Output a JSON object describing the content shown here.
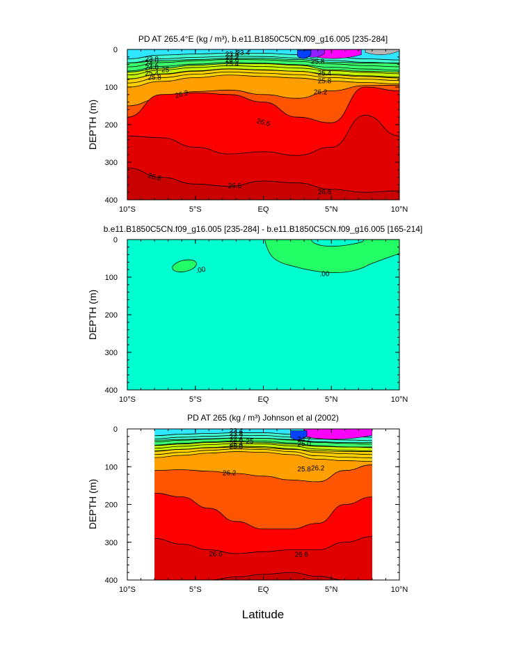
{
  "x_axis_label": "Latitude",
  "chart_data": [
    {
      "type": "heatmap",
      "title": "PD AT 265.4°E (kg / m³), b.e11.B1850C5CN.f09_g16.005 [235-284]",
      "ylabel": "DEPTH (m)",
      "xlabel": "",
      "xlim": [
        -10,
        10
      ],
      "ylim": [
        400,
        0
      ],
      "x_ticks": [
        "10°S",
        "5°S",
        "EQ",
        "5°N",
        "10°N"
      ],
      "y_ticks": [
        "0",
        "100",
        "200",
        "300",
        "400"
      ],
      "data_extent": [
        -10,
        10
      ],
      "contour_labels": [
        "23.4",
        "23.8",
        "24.2",
        "24.6",
        "25",
        "25.4",
        "25.8",
        "26.2",
        "26.6",
        "26.8"
      ],
      "layers": [
        {
          "color": "#2ee6ff",
          "level": null,
          "y_lat": [
            0,
            0,
            0,
            0,
            0,
            0,
            0,
            0,
            0
          ]
        },
        {
          "color": "#40fcd0",
          "level": null,
          "y_lat": [
            25,
            15,
            12,
            10,
            10,
            14,
            20,
            25,
            28
          ]
        },
        {
          "color": "#3cff6e",
          "level": "23.8",
          "y_lat": [
            36,
            30,
            27,
            24,
            24,
            27,
            34,
            36,
            36
          ]
        },
        {
          "color": "#c6f500",
          "level": "24.6",
          "y_lat": [
            60,
            50,
            42,
            38,
            38,
            42,
            54,
            58,
            60
          ]
        },
        {
          "color": "#ffd000",
          "level": "25.4",
          "y_lat": [
            78,
            66,
            58,
            52,
            55,
            58,
            68,
            72,
            76
          ]
        },
        {
          "color": "#ffa000",
          "level": "25.8",
          "y_lat": [
            100,
            85,
            75,
            68,
            72,
            76,
            84,
            88,
            92
          ]
        },
        {
          "color": "#ff5400",
          "level": "26.2",
          "y_lat": [
            150,
            130,
            112,
            108,
            120,
            130,
            110,
            96,
            95
          ]
        },
        {
          "color": "#ff0000",
          "level": null,
          "y_lat": [
            180,
            120,
            115,
            120,
            140,
            180,
            195,
            100,
            110
          ]
        },
        {
          "color": "#e00000",
          "level": null,
          "y_lat": [
            230,
            235,
            260,
            278,
            272,
            282,
            260,
            175,
            230
          ]
        },
        {
          "color": "#c80000",
          "level": "26.8",
          "y_lat": [
            315,
            340,
            358,
            364,
            350,
            355,
            372,
            380,
            376
          ]
        }
      ],
      "patches": [
        {
          "color": "#b5b5b5",
          "lat": [
            7.5,
            10
          ],
          "depth": [
            0,
            15
          ]
        },
        {
          "color": "#ff00ff",
          "lat": [
            3.5,
            7.2
          ],
          "depth": [
            0,
            25
          ]
        },
        {
          "color": "#9020ff",
          "lat": [
            3.0,
            4.5
          ],
          "depth": [
            0,
            22
          ]
        },
        {
          "color": "#0040ff",
          "lat": [
            2.5,
            3.5
          ],
          "depth": [
            2,
            25
          ]
        }
      ]
    },
    {
      "type": "heatmap",
      "title": "b.e11.B1850C5CN.f09_g16.005 [235-284] - b.e11.B1850C5CN.f09_g16.005 [165-214]",
      "ylabel": "DEPTH (m)",
      "xlabel": "",
      "xlim": [
        -10,
        10
      ],
      "ylim": [
        400,
        0
      ],
      "x_ticks": [
        "10°S",
        "5°S",
        "EQ",
        "5°N",
        "10°N"
      ],
      "y_ticks": [
        "0",
        "100",
        "200",
        "300",
        "400"
      ],
      "data_extent": [
        -10,
        10
      ],
      "contour_labels": [
        ".00",
        ".00"
      ],
      "layers": [
        {
          "color": "#00ffd0",
          "level": null,
          "y_lat": [
            0,
            0,
            0,
            0,
            0,
            0,
            0,
            0,
            0
          ]
        }
      ],
      "patches": [
        {
          "color": "#22ff66",
          "shape": "blob-south",
          "lat": [
            -6.7,
            -4.9
          ],
          "depth": [
            55,
            85
          ]
        },
        {
          "color": "#22ff66",
          "shape": "blob-north",
          "lat": [
            0.1,
            10
          ],
          "depth": [
            0,
            95
          ]
        }
      ]
    },
    {
      "type": "heatmap",
      "title": "PD AT 265 (kg / m³) Johnson et al (2002)",
      "ylabel": "DEPTH (m)",
      "xlabel": "",
      "xlim": [
        -10,
        10
      ],
      "ylim": [
        400,
        0
      ],
      "x_ticks": [
        "10°S",
        "5°S",
        "EQ",
        "5°N",
        "10°N"
      ],
      "y_ticks": [
        "0",
        "100",
        "200",
        "300",
        "400"
      ],
      "data_extent": [
        -8,
        8
      ],
      "contour_labels": [
        "23.4",
        "23.8",
        "24.2",
        "24.6",
        "25",
        "25.4",
        "25.8",
        "26.2",
        "26.6"
      ],
      "layers": [
        {
          "color": "#2ee6ff",
          "level": null,
          "y_lat": [
            0,
            0,
            0,
            0,
            0,
            0,
            0,
            0,
            0
          ]
        },
        {
          "color": "#40fcd0",
          "level": null,
          "y_lat": [
            18,
            14,
            12,
            10,
            10,
            14,
            18,
            20,
            22
          ]
        },
        {
          "color": "#3cff6e",
          "level": "23.8",
          "y_lat": [
            30,
            28,
            26,
            24,
            25,
            28,
            34,
            36,
            36
          ]
        },
        {
          "color": "#c6f500",
          "level": "24.6",
          "y_lat": [
            44,
            40,
            36,
            34,
            36,
            40,
            46,
            48,
            48
          ]
        },
        {
          "color": "#ffd000",
          "level": "25.4",
          "y_lat": [
            58,
            54,
            50,
            48,
            50,
            54,
            58,
            60,
            60
          ]
        },
        {
          "color": "#ffa000",
          "level": "25.8",
          "y_lat": [
            76,
            70,
            64,
            60,
            62,
            68,
            80,
            84,
            86
          ]
        },
        {
          "color": "#ff5400",
          "level": "26.2",
          "y_lat": [
            110,
            108,
            112,
            118,
            125,
            135,
            140,
            110,
            95
          ]
        },
        {
          "color": "#ff0000",
          "level": null,
          "y_lat": [
            170,
            180,
            210,
            245,
            265,
            265,
            250,
            200,
            180
          ]
        },
        {
          "color": "#e00000",
          "level": "26.6",
          "y_lat": [
            290,
            305,
            320,
            330,
            325,
            320,
            320,
            300,
            285
          ]
        },
        {
          "color": "#c80000",
          "level": null,
          "y_lat": [
            400,
            400,
            400,
            392,
            385,
            380,
            390,
            400,
            400
          ]
        }
      ],
      "patches": [
        {
          "color": "#b5b5b5",
          "lat": [
            5,
            8
          ],
          "depth": [
            0,
            15
          ]
        },
        {
          "color": "#ff00ff",
          "lat": [
            3,
            8
          ],
          "depth": [
            0,
            28
          ]
        },
        {
          "color": "#0040ff",
          "lat": [
            2,
            3.2
          ],
          "depth": [
            5,
            30
          ]
        }
      ]
    }
  ]
}
